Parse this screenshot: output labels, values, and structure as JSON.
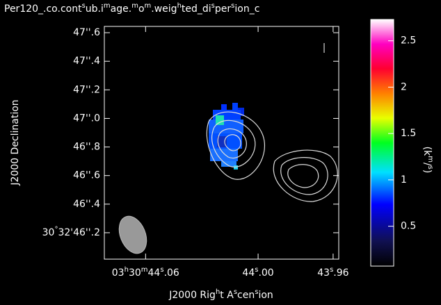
{
  "chart_data": {
    "type": "image",
    "title": "Per120_.co.contsub.image.mom.weighted_dispersion_c",
    "x_label": "J2000 Right Ascension",
    "y_label": "J2000 Declination",
    "colorbar_label": "(km/s)",
    "xlim": [
      44.082,
      43.957
    ],
    "xticks": [
      {
        "value": 44.06,
        "label": "03h30m44s.06"
      },
      {
        "value": 44.0,
        "label": "44s.00"
      },
      {
        "value": 43.96,
        "label": "43s.96"
      }
    ],
    "ylim": [
      46.015,
      47.644
    ],
    "yticks": [
      {
        "value": 47.6,
        "label": "47''.6"
      },
      {
        "value": 47.4,
        "label": "47''.4"
      },
      {
        "value": 47.2,
        "label": "47''.2"
      },
      {
        "value": 47.0,
        "label": "47''.0"
      },
      {
        "value": 46.8,
        "label": "46''.8"
      },
      {
        "value": 46.6,
        "label": "46''.6"
      },
      {
        "value": 46.4,
        "label": "46''.4"
      },
      {
        "value": 46.2,
        "label": "30°32'46''.2"
      }
    ],
    "clim": [
      0.07,
      2.73
    ],
    "cticks": [
      0.5,
      1,
      1.5,
      2,
      2.5
    ]
  }
}
